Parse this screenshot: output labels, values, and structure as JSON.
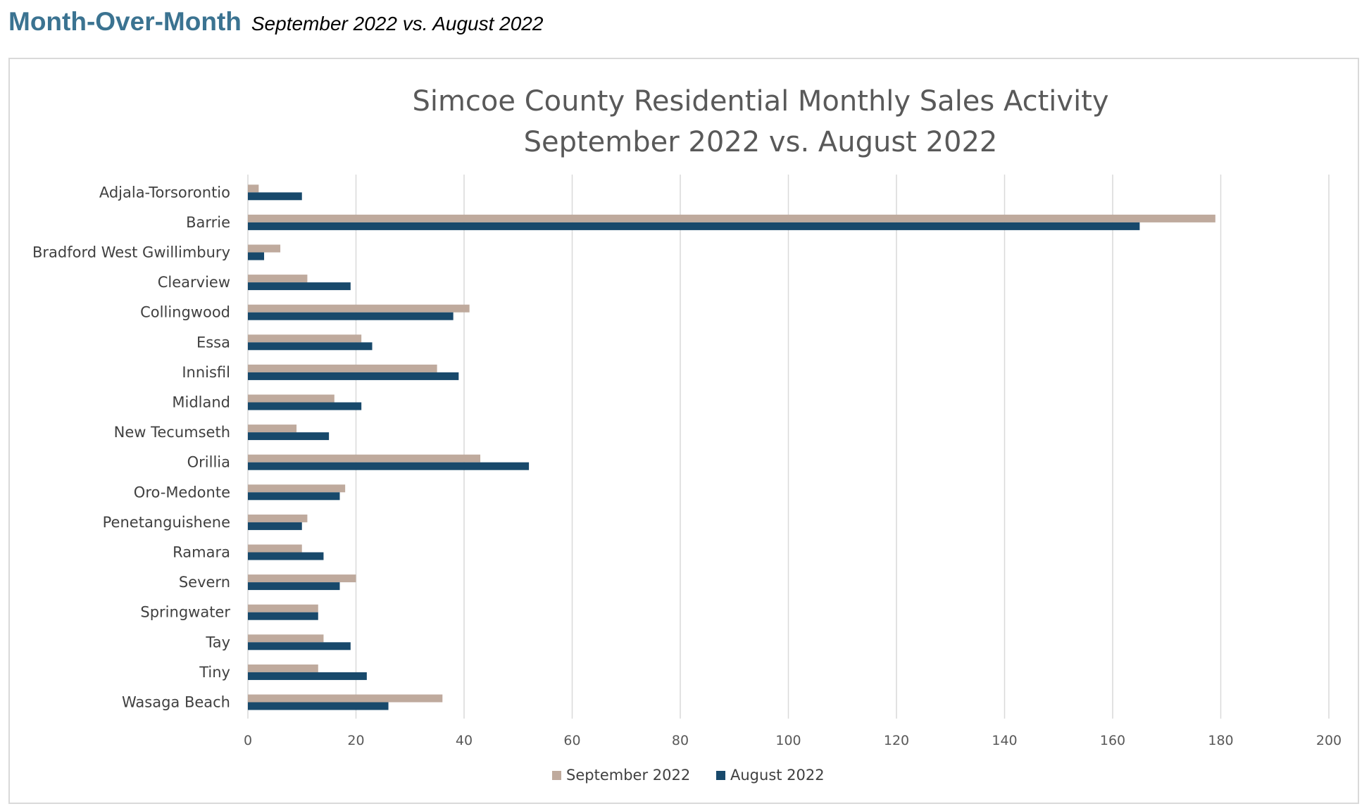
{
  "header": {
    "title": "Month-Over-Month",
    "subtitle": "September 2022 vs. August 2022",
    "title_color": "#3b7391"
  },
  "chart_data": {
    "type": "bar",
    "orientation": "horizontal",
    "title": [
      "Simcoe County Residential Monthly Sales Activity",
      "September 2022 vs. August 2022"
    ],
    "categories": [
      "Adjala-Torsorontio",
      "Barrie",
      "Bradford West Gwillimbury",
      "Clearview",
      "Collingwood",
      "Essa",
      "Innisfil",
      "Midland",
      "New Tecumseth",
      "Orillia",
      "Oro-Medonte",
      "Penetanguishene",
      "Ramara",
      "Severn",
      "Springwater",
      "Tay",
      "Tiny",
      "Wasaga Beach"
    ],
    "series": [
      {
        "name": "September 2022",
        "color": "#bfaa9d",
        "values": [
          2,
          179,
          6,
          11,
          41,
          21,
          35,
          16,
          9,
          43,
          18,
          11,
          10,
          20,
          13,
          14,
          13,
          36
        ]
      },
      {
        "name": "August 2022",
        "color": "#18496b",
        "values": [
          10,
          165,
          3,
          19,
          38,
          23,
          39,
          21,
          15,
          52,
          17,
          10,
          14,
          17,
          13,
          19,
          22,
          26
        ]
      }
    ],
    "xlim": [
      0,
      200
    ],
    "xticks": [
      0,
      20,
      40,
      60,
      80,
      100,
      120,
      140,
      160,
      180,
      200
    ],
    "grid": true,
    "legend_position": "bottom-center"
  }
}
